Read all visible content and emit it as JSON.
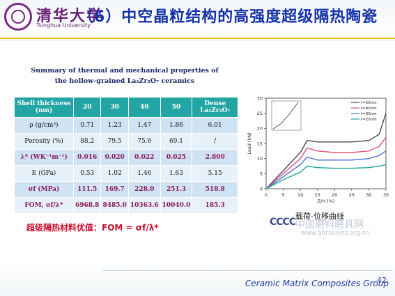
{
  "header": {
    "logo_cn": "清华大学",
    "logo_en": "Tsinghua University",
    "title": "（6）中空晶粒结构的高强度超级隔热陶瓷"
  },
  "table": {
    "caption_line1": "Summary of thermal and mechanical properties of",
    "caption_line2": "the hollow-grained La₂Zr₂O₇ ceramics",
    "header": [
      "Shell thickness (nm)",
      "20",
      "30",
      "40",
      "50",
      "Dense La₂Zr₂O₇"
    ],
    "rows": [
      [
        "ρ (g/cm³)",
        "0.71",
        "1.23",
        "1.47",
        "1.86",
        "6.01"
      ],
      [
        "Porosity (%)",
        "88.2",
        "79.5",
        "75.6",
        "69.1",
        "/"
      ],
      [
        "λ* (WK⁻¹m⁻¹)",
        "0.016",
        "0.020",
        "0.022",
        "0.025",
        "2.800"
      ],
      [
        "E (GPa)",
        "0.53",
        "1.02",
        "1.46",
        "1.63",
        "5.15"
      ],
      [
        "σf (MPa)",
        "111.5",
        "169.7",
        "228.0",
        "251.3",
        "518.8"
      ],
      [
        "FOM, σf/λ*",
        "6968.8",
        "8485.0",
        "10363.6",
        "10040.0",
        "185.3"
      ]
    ]
  },
  "fom_text": "超级隔热材料优值：FOM = σf/λ*",
  "chart_caption": "载荷-位移曲线",
  "watermark": {
    "logo": "CCCC",
    "text": "中国磨料磨具网",
    "url": "www.abrasives.org.cn"
  },
  "footer": {
    "group": "Ceramic Matrix Composites Group",
    "page": "42"
  },
  "chart_data": {
    "type": "line",
    "xlabel": "Z/H (%)",
    "ylabel": "Load (kN)",
    "xlim": [
      0,
      35
    ],
    "ylim": [
      0,
      30
    ],
    "x_ticks": [
      "0",
      "5",
      "10",
      "15",
      "20",
      "25",
      "30",
      "35"
    ],
    "y_ticks": [
      "0",
      "5",
      "10",
      "15",
      "20",
      "25",
      "30"
    ],
    "legend_position": "top-right",
    "x": [
      0,
      5,
      10,
      12,
      15,
      20,
      25,
      30,
      33,
      35
    ],
    "series": [
      {
        "name": "t=50nm",
        "values": [
          0,
          6,
          12,
          16,
          15.5,
          15.5,
          15.5,
          16,
          18,
          25
        ]
      },
      {
        "name": "t=40nm",
        "values": [
          0,
          5,
          10,
          13.5,
          12.5,
          12,
          12,
          12.5,
          14,
          17
        ]
      },
      {
        "name": "t=30nm",
        "values": [
          0,
          4,
          8,
          10.5,
          9.5,
          9.5,
          9.5,
          10,
          11,
          12.5
        ]
      },
      {
        "name": "t=20nm",
        "values": [
          0,
          3,
          5.5,
          7.5,
          7,
          6.8,
          6.8,
          7,
          7.5,
          8
        ]
      }
    ],
    "colors": [
      "#4a4a4a",
      "#e0547a",
      "#4a6ed0",
      "#1aa89a"
    ]
  }
}
